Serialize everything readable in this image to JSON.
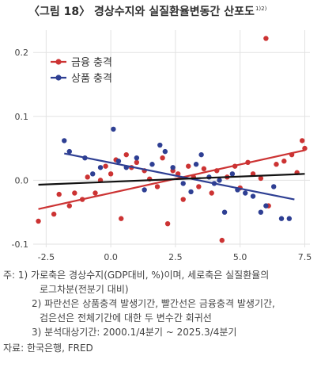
{
  "title": "〈그림 18〉 경상수지와 실질환율변동간 산포도",
  "title_superscript": "1)2)",
  "notes": {
    "prefix": "주:",
    "note1_a": "1) 가로축은 경상수지(GDP대비, %)이며, 세로축은 실질환율의",
    "note1_b": "로그차분(전분기 대비)",
    "note2_a": "2) 파란선은 상품충격 발생기간, 빨간선은 금융충격 발생기간,",
    "note2_b": "검은선은 전체기간에 대한 두 변수간 회귀선",
    "note3": "3) 분석대상기간: 2000.1/4분기 ~ 2025.3/4분기",
    "source": "자료: 한국은행, FRED"
  },
  "chart_data": {
    "type": "scatter",
    "title": "",
    "xlabel": "",
    "ylabel": "",
    "xlim": [
      -3.0,
      7.7
    ],
    "ylim": [
      -0.105,
      0.235
    ],
    "x_ticks": [
      -2.5,
      0.0,
      2.5,
      5.0,
      7.5
    ],
    "x_tick_labels": [
      "-2.5",
      "0.0",
      "2.5",
      "5.0",
      "7.5"
    ],
    "y_ticks": [
      -0.1,
      0.0,
      0.1,
      0.2
    ],
    "y_tick_labels": [
      "-0.1",
      "0.0",
      "0.1",
      "0.2"
    ],
    "grid": true,
    "legend_position": "top-left",
    "series": [
      {
        "name": "금융 충격",
        "color": "#cc3333",
        "points": [
          [
            -2.8,
            -0.064
          ],
          [
            -2.2,
            -0.053
          ],
          [
            -2.0,
            -0.022
          ],
          [
            -1.6,
            -0.04
          ],
          [
            -1.4,
            -0.02
          ],
          [
            -1.1,
            -0.03
          ],
          [
            -0.9,
            0.005
          ],
          [
            -0.6,
            -0.02
          ],
          [
            -0.4,
            0.0
          ],
          [
            -0.2,
            0.022
          ],
          [
            0.0,
            0.01
          ],
          [
            0.2,
            0.032
          ],
          [
            0.4,
            -0.06
          ],
          [
            0.6,
            0.04
          ],
          [
            0.8,
            0.02
          ],
          [
            1.0,
            0.028
          ],
          [
            1.3,
            0.015
          ],
          [
            1.5,
            0.002
          ],
          [
            1.8,
            -0.01
          ],
          [
            2.0,
            0.035
          ],
          [
            2.2,
            -0.068
          ],
          [
            2.4,
            0.015
          ],
          [
            2.6,
            0.01
          ],
          [
            2.8,
            -0.03
          ],
          [
            3.0,
            0.022
          ],
          [
            3.2,
            0.005
          ],
          [
            3.4,
            -0.01
          ],
          [
            3.6,
            0.018
          ],
          [
            3.9,
            -0.02
          ],
          [
            4.1,
            0.015
          ],
          [
            4.3,
            -0.094
          ],
          [
            4.5,
            0.005
          ],
          [
            4.8,
            0.022
          ],
          [
            5.0,
            -0.012
          ],
          [
            5.3,
            0.028
          ],
          [
            5.5,
            0.01
          ],
          [
            5.8,
            0.003
          ],
          [
            6.0,
            0.222
          ],
          [
            6.1,
            -0.04
          ],
          [
            6.4,
            0.025
          ],
          [
            6.7,
            0.03
          ],
          [
            7.0,
            0.04
          ],
          [
            7.2,
            0.012
          ],
          [
            7.4,
            0.062
          ],
          [
            7.5,
            0.05
          ]
        ],
        "fit": [
          [
            -2.8,
            -0.045
          ],
          [
            7.5,
            0.047
          ]
        ]
      },
      {
        "name": "상품 충격",
        "color": "#2e3f93",
        "points": [
          [
            -1.8,
            0.062
          ],
          [
            -1.6,
            0.045
          ],
          [
            -1.0,
            0.035
          ],
          [
            -0.7,
            0.01
          ],
          [
            -0.4,
            0.02
          ],
          [
            0.1,
            0.08
          ],
          [
            0.3,
            0.03
          ],
          [
            0.6,
            0.02
          ],
          [
            1.0,
            0.035
          ],
          [
            1.3,
            -0.015
          ],
          [
            1.6,
            0.025
          ],
          [
            1.9,
            0.055
          ],
          [
            2.1,
            0.045
          ],
          [
            2.4,
            0.02
          ],
          [
            2.8,
            -0.005
          ],
          [
            3.1,
            -0.018
          ],
          [
            3.3,
            0.025
          ],
          [
            3.5,
            0.04
          ],
          [
            3.8,
            0.005
          ],
          [
            4.0,
            -0.005
          ],
          [
            4.2,
            0.0
          ],
          [
            4.4,
            -0.05
          ],
          [
            4.7,
            0.01
          ],
          [
            4.9,
            -0.015
          ],
          [
            5.2,
            -0.02
          ],
          [
            5.5,
            -0.025
          ],
          [
            5.8,
            -0.05
          ],
          [
            6.0,
            -0.04
          ],
          [
            6.3,
            -0.01
          ],
          [
            6.6,
            -0.06
          ],
          [
            6.9,
            -0.06
          ]
        ],
        "fit": [
          [
            -1.8,
            0.042
          ],
          [
            7.1,
            -0.03
          ]
        ]
      }
    ],
    "overall_fit": {
      "color": "#111111",
      "line": [
        [
          -2.8,
          -0.007
        ],
        [
          7.5,
          0.01
        ]
      ]
    }
  }
}
